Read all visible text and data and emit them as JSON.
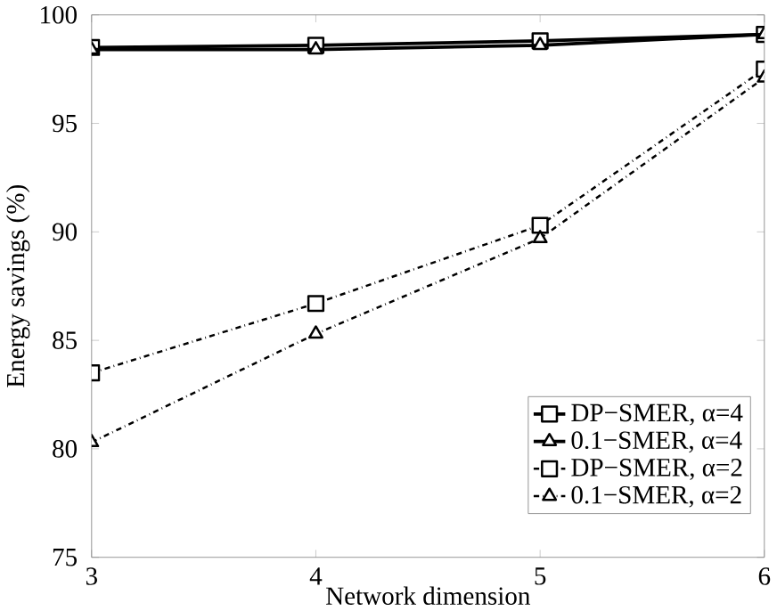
{
  "chart_data": {
    "type": "line",
    "xlabel": "Network dimension",
    "ylabel": "Energy savings (%)",
    "x": [
      3,
      4,
      5,
      6
    ],
    "series": [
      {
        "name": "DP−SMER, α=4",
        "color": "#000000",
        "marker": "square",
        "line_style": "solid",
        "values": [
          98.5,
          98.6,
          98.8,
          99.1
        ]
      },
      {
        "name": "0.1−SMER, α=4",
        "color": "#000000",
        "marker": "triangle",
        "line_style": "solid",
        "values": [
          98.4,
          98.4,
          98.6,
          99.1
        ]
      },
      {
        "name": "DP−SMER, α=2",
        "color": "#000000",
        "marker": "square",
        "line_style": "dashdot",
        "values": [
          83.5,
          86.7,
          90.3,
          97.5
        ]
      },
      {
        "name": "0.1−SMER, α=2",
        "color": "#000000",
        "marker": "triangle",
        "line_style": "dashdot",
        "values": [
          80.3,
          85.3,
          89.7,
          97.1
        ]
      }
    ],
    "xlim": [
      3,
      6
    ],
    "ylim": [
      75,
      100
    ],
    "xticks": [
      3,
      4,
      5,
      6
    ],
    "yticks": [
      75,
      80,
      85,
      90,
      95,
      100
    ],
    "grid": false,
    "legend": "bottom right"
  }
}
